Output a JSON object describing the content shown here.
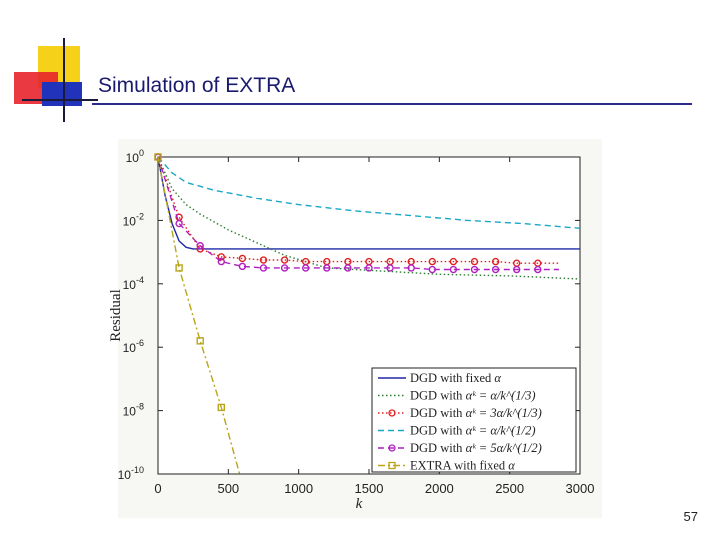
{
  "slide": {
    "title": "Simulation of EXTRA",
    "page_number": "57"
  },
  "colors": {
    "title": "#1a1a6e",
    "deco_yellow": "#f5d11a",
    "deco_red": "#e8242b",
    "deco_blue": "#2233bb"
  },
  "chart_data": {
    "type": "line",
    "title": "",
    "xlabel": "k",
    "ylabel": "Residual",
    "xlim": [
      0,
      3000
    ],
    "ylim_log10": [
      -10,
      0
    ],
    "yscale": "log",
    "x_ticks": [
      "0",
      "500",
      "1000",
      "1500",
      "2000",
      "2500",
      "3000"
    ],
    "x_tick_values": [
      0,
      500,
      1000,
      1500,
      2000,
      2500,
      3000
    ],
    "y_tick_base": "10",
    "y_tick_exponents": [
      "0",
      "-2",
      "-4",
      "-6",
      "-8",
      "-10"
    ],
    "y_tick_values": [
      0,
      -2,
      -4,
      -6,
      -8,
      -10
    ],
    "legend_position": "bottom-right",
    "series": [
      {
        "name": "DGD with fixed α",
        "legend_prefix": "DGD with fixed ",
        "legend_math": "α",
        "color": "#1f2aa8",
        "dash": "",
        "marker": "none",
        "x": [
          0,
          50,
          100,
          150,
          200,
          250,
          300,
          500,
          1000,
          1500,
          2000,
          2500,
          3000
        ],
        "log10_y": [
          0,
          -1.2,
          -2.1,
          -2.65,
          -2.85,
          -2.9,
          -2.9,
          -2.9,
          -2.9,
          -2.9,
          -2.9,
          -2.9,
          -2.9
        ]
      },
      {
        "name": "DGD with α^k = α/k^{1/3}",
        "legend_prefix": "DGD with ",
        "legend_math": "αᵏ = α/k^(1/3)",
        "color": "#2e7d32",
        "dash": "1.5,2.5",
        "marker": "none",
        "x": [
          0,
          100,
          200,
          300,
          500,
          700,
          900,
          1200,
          1600,
          2000,
          2500,
          3000
        ],
        "log10_y": [
          0,
          -1.0,
          -1.5,
          -1.8,
          -2.3,
          -2.7,
          -3.1,
          -3.5,
          -3.6,
          -3.7,
          -3.75,
          -3.85
        ]
      },
      {
        "name": "DGD with α^k = 3α/k^{1/3}",
        "legend_prefix": "DGD with ",
        "legend_math": "αᵏ = 3α/k^(1/3)",
        "color": "#e02020",
        "dash": "1.5,2.5",
        "marker": "circle",
        "x": [
          0,
          150,
          300,
          450,
          600,
          750,
          900,
          1050,
          1200,
          1350,
          1500,
          1650,
          1800,
          1950,
          2100,
          2250,
          2400,
          2550,
          2700,
          2850
        ],
        "log10_y": [
          0,
          -1.9,
          -2.9,
          -3.15,
          -3.2,
          -3.25,
          -3.25,
          -3.3,
          -3.3,
          -3.3,
          -3.3,
          -3.3,
          -3.3,
          -3.3,
          -3.3,
          -3.3,
          -3.3,
          -3.35,
          -3.35,
          -3.35
        ],
        "marker_x": [
          0,
          150,
          300,
          450,
          600,
          750,
          900,
          1050,
          1200,
          1350,
          1500,
          1650,
          1800,
          1950,
          2100,
          2250,
          2400,
          2550,
          2700
        ]
      },
      {
        "name": "DGD with α^k = α/k^{1/2}",
        "legend_prefix": "DGD with ",
        "legend_math": "αᵏ = α/k^(1/2)",
        "color": "#1aa8c8",
        "dash": "6,4",
        "marker": "none",
        "x": [
          0,
          100,
          200,
          400,
          700,
          1000,
          1400,
          1800,
          2200,
          2600,
          3000
        ],
        "log10_y": [
          0,
          -0.5,
          -0.8,
          -1.05,
          -1.3,
          -1.5,
          -1.7,
          -1.85,
          -2.0,
          -2.1,
          -2.25
        ]
      },
      {
        "name": "DGD with α^k = 5α/k^{1/2}",
        "legend_prefix": "DGD with ",
        "legend_math": "αᵏ = 5α/k^(1/2)",
        "color": "#b020c0",
        "dash": "6,4",
        "marker": "circle",
        "x": [
          0,
          150,
          300,
          450,
          600,
          750,
          900,
          1050,
          1200,
          1350,
          1500,
          1650,
          1800,
          1950,
          2100,
          2250,
          2400,
          2550,
          2700,
          2850
        ],
        "log10_y": [
          0,
          -2.1,
          -2.8,
          -3.3,
          -3.45,
          -3.5,
          -3.5,
          -3.5,
          -3.5,
          -3.5,
          -3.5,
          -3.5,
          -3.5,
          -3.55,
          -3.55,
          -3.55,
          -3.55,
          -3.55,
          -3.55,
          -3.55
        ],
        "marker_x": [
          0,
          150,
          300,
          450,
          600,
          750,
          900,
          1050,
          1200,
          1350,
          1500,
          1650,
          1800,
          1950,
          2100,
          2250,
          2400,
          2550,
          2700
        ]
      },
      {
        "name": "EXTRA with fixed α",
        "legend_prefix": "EXTRA with fixed ",
        "legend_math": "α",
        "color": "#b8a51a",
        "dash": "7,3,2,3",
        "marker": "square",
        "x": [
          0,
          150,
          300,
          450,
          580
        ],
        "log10_y": [
          0,
          -3.5,
          -5.8,
          -7.9,
          -10
        ],
        "marker_x": [
          0,
          150,
          300,
          450
        ]
      }
    ]
  }
}
